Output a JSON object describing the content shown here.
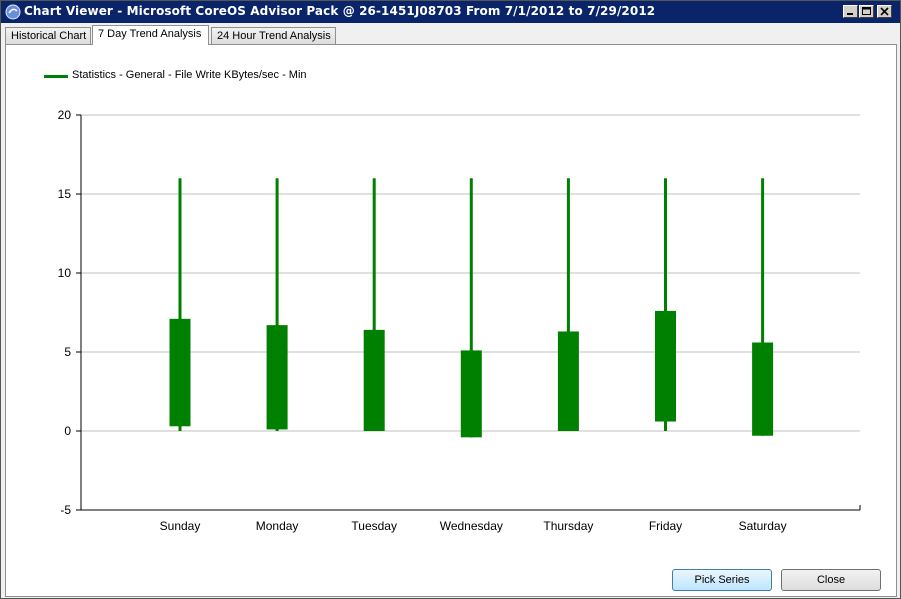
{
  "window": {
    "title": "Chart Viewer - Microsoft CoreOS Advisor Pack @ 26-1451J08703 From 7/1/2012 to 7/29/2012",
    "controls": [
      "minimize",
      "maximize",
      "close"
    ]
  },
  "tabs": [
    {
      "label": "Historical Chart",
      "active": false
    },
    {
      "label": "7 Day Trend Analysis",
      "active": true
    },
    {
      "label": "24 Hour Trend Analysis",
      "active": false
    }
  ],
  "buttons": {
    "pick_series": "Pick Series",
    "close": "Close"
  },
  "colors": {
    "series": "#008000",
    "gridline": "#c0c0c0",
    "titlebar": "#0a246a"
  },
  "chart_data": {
    "type": "candlestick",
    "title": "",
    "xlabel": "",
    "ylabel": "",
    "ylim": [
      -5,
      20
    ],
    "yticks": [
      -5,
      0,
      5,
      10,
      15,
      20
    ],
    "grid": true,
    "legend_position": "top-left",
    "categories": [
      "Sunday",
      "Monday",
      "Tuesday",
      "Wednesday",
      "Thursday",
      "Friday",
      "Saturday"
    ],
    "series": [
      {
        "name": "Statistics - General - File Write KBytes/sec - Min",
        "high": [
          16,
          16,
          16,
          16,
          16,
          16,
          16
        ],
        "low": [
          0,
          0,
          0,
          -0.4,
          0,
          0,
          -0.3
        ],
        "box_top": [
          7.1,
          6.7,
          6.4,
          5.1,
          6.3,
          7.6,
          5.6
        ],
        "box_bottom": [
          0.3,
          0.1,
          0,
          -0.4,
          0,
          0.6,
          -0.3
        ]
      }
    ]
  }
}
